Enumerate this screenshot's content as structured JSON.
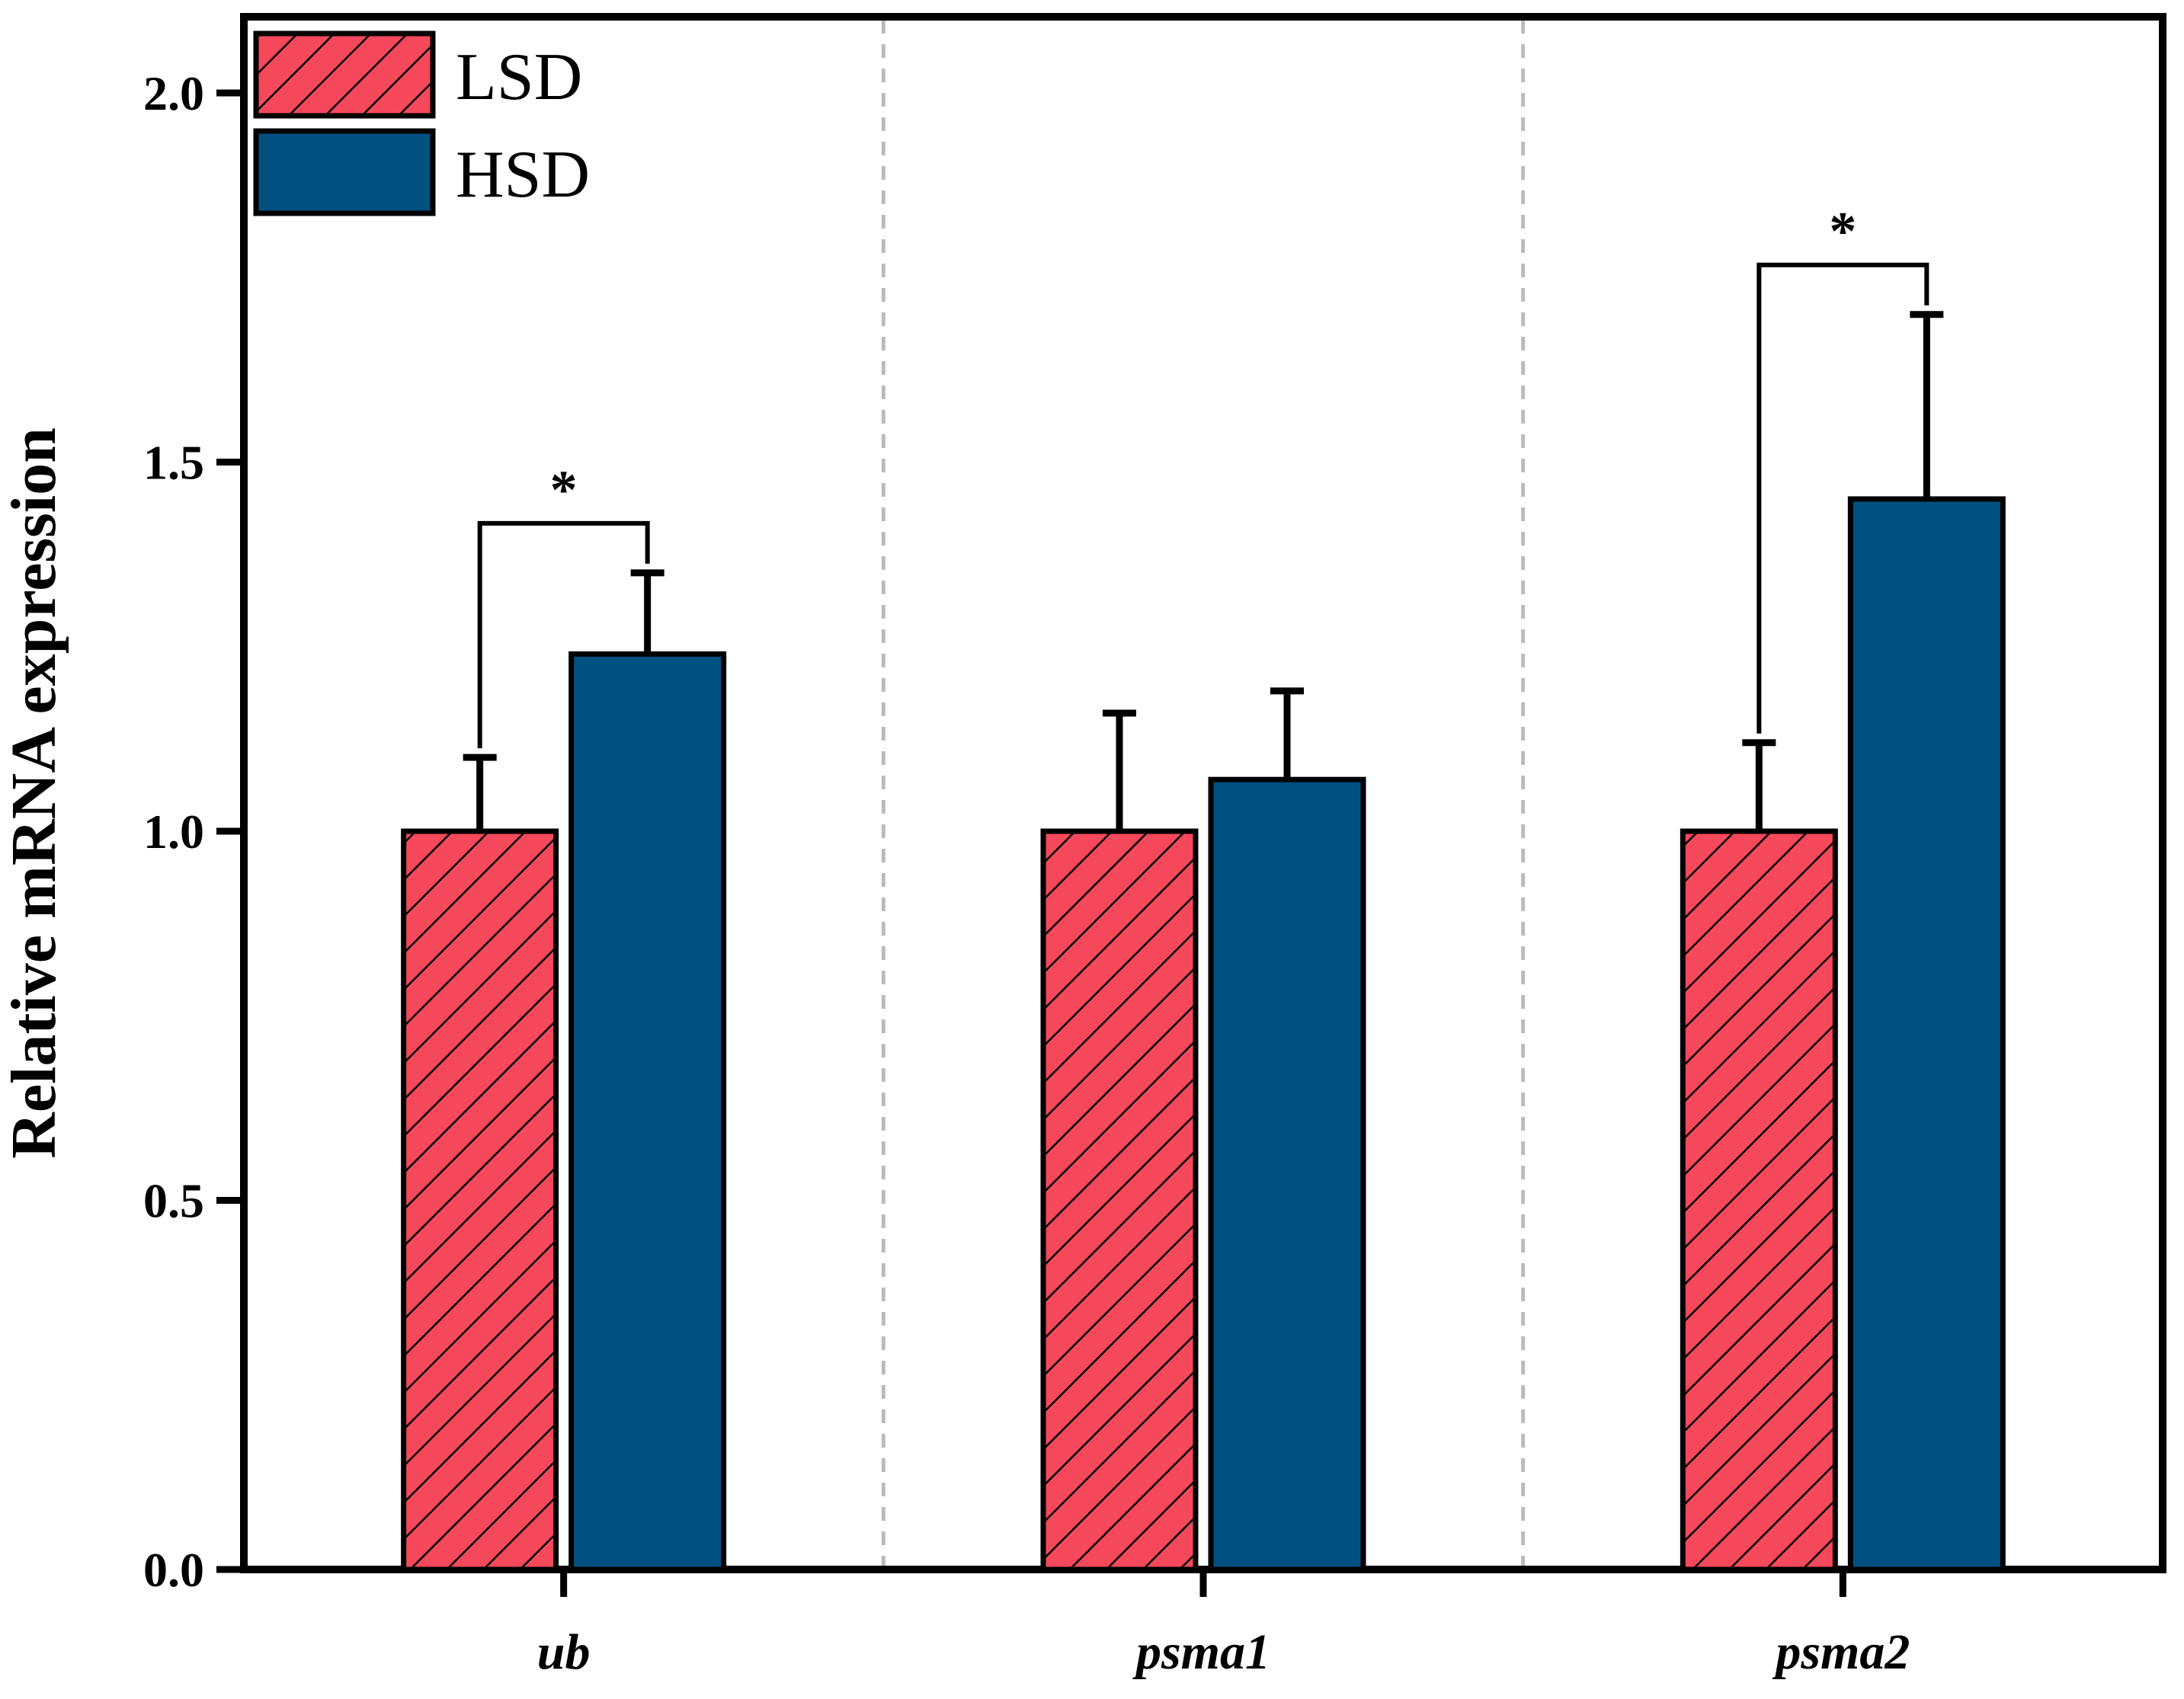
{
  "chart_data": {
    "type": "bar",
    "ylabel": "Relative mRNA expression",
    "xlabel": "",
    "ylim": [
      0,
      2.1
    ],
    "yticks": [
      "0.0",
      "0.5",
      "1.0",
      "1.5",
      "2.0"
    ],
    "categories": [
      "ub",
      "psma1",
      "psma2"
    ],
    "series": [
      {
        "name": "LSD",
        "values": [
          1.0,
          1.0,
          1.0
        ],
        "errors": [
          0.1,
          0.16,
          0.12
        ],
        "color": "#f5485a",
        "pattern": "hatch"
      },
      {
        "name": "HSD",
        "values": [
          1.24,
          1.07,
          1.45
        ],
        "errors": [
          0.11,
          0.12,
          0.25
        ],
        "color": "#005180",
        "pattern": "solid"
      }
    ],
    "significance": [
      {
        "category": "ub",
        "label": "*"
      },
      {
        "category": "psma1",
        "label": ""
      },
      {
        "category": "psma2",
        "label": "*"
      }
    ],
    "legend_position": "top-left",
    "grid": false,
    "category_separators": true
  }
}
